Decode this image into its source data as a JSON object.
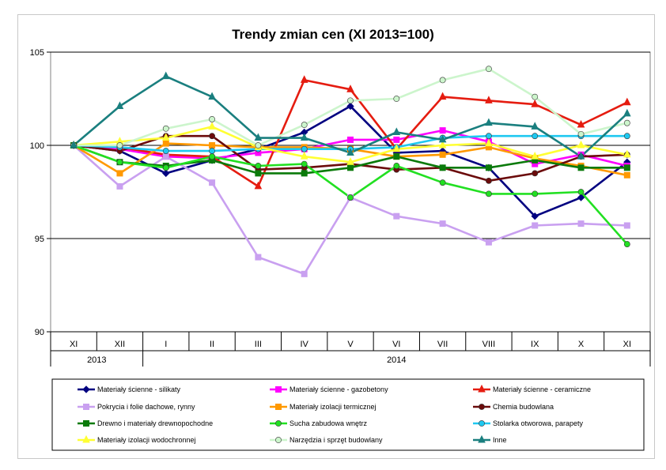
{
  "chart_data": {
    "type": "line",
    "title": "Trendy zmian cen (XI 2013=100)",
    "xlabel": "",
    "ylabel": "",
    "ylim": [
      90,
      105
    ],
    "yticks": [
      90,
      95,
      100,
      105
    ],
    "categories": [
      "XI",
      "XII",
      "I",
      "II",
      "III",
      "IV",
      "V",
      "VI",
      "VII",
      "VIII",
      "IX",
      "X",
      "XI"
    ],
    "year_groups": [
      {
        "label": "2013",
        "start": 0,
        "end": 1
      },
      {
        "label": "2014",
        "start": 2,
        "end": 12
      }
    ],
    "grid": "horizontal",
    "legend_position": "bottom",
    "series": [
      {
        "name": "Materiały ścienne - silikaty",
        "color": "#000080",
        "marker": "diamond",
        "values": [
          100,
          99.7,
          98.5,
          99.2,
          99.8,
          100.7,
          102.1,
          99.6,
          99.7,
          98.8,
          96.2,
          97.2,
          99.1
        ]
      },
      {
        "name": "Materiały ścienne - gazobetony",
        "color": "#ff00ff",
        "marker": "square",
        "values": [
          100,
          99.8,
          99.4,
          99.3,
          99.6,
          99.8,
          100.3,
          100.3,
          100.8,
          100.2,
          99.0,
          99.5,
          98.9
        ]
      },
      {
        "name": "Materiały ścienne - ceramiczne",
        "color": "#e51c10",
        "marker": "triangle",
        "values": [
          100,
          99.9,
          99.5,
          99.4,
          97.8,
          103.5,
          103.0,
          99.8,
          102.6,
          102.4,
          102.2,
          101.1,
          102.3
        ]
      },
      {
        "name": "Pokrycia i folie dachowe, rynny",
        "color": "#c9a0f0",
        "marker": "square",
        "values": [
          100,
          97.8,
          99.4,
          98.0,
          94.0,
          93.1,
          97.2,
          96.2,
          95.8,
          94.8,
          95.7,
          95.8,
          95.7
        ]
      },
      {
        "name": "Materiały izolacji termicznej",
        "color": "#ff9900",
        "marker": "square",
        "values": [
          100,
          98.5,
          100.1,
          100.0,
          99.9,
          99.9,
          99.8,
          99.4,
          99.5,
          99.9,
          99.3,
          98.9,
          98.4
        ]
      },
      {
        "name": "Chemia budowlana",
        "color": "#6b0b0b",
        "marker": "circle",
        "values": [
          100,
          99.7,
          100.5,
          100.5,
          98.7,
          98.8,
          99.0,
          98.7,
          98.8,
          98.1,
          98.5,
          99.4,
          99.5
        ]
      },
      {
        "name": "Drewno i materiały drewnopochodne",
        "color": "#0a7a0a",
        "marker": "square",
        "values": [
          100,
          99.1,
          98.9,
          99.2,
          98.5,
          98.5,
          98.8,
          99.4,
          98.8,
          98.8,
          99.2,
          98.8,
          98.8
        ]
      },
      {
        "name": "Sucha zabudowa wnętrz",
        "color": "#22e022",
        "marker": "circle",
        "values": [
          100,
          99.1,
          98.8,
          99.4,
          98.9,
          99.0,
          97.2,
          98.9,
          98.0,
          97.4,
          97.4,
          97.5,
          94.7
        ]
      },
      {
        "name": "Stolarka otworowa, parapety",
        "color": "#1ec8f0",
        "marker": "circle",
        "values": [
          100,
          99.9,
          99.7,
          99.7,
          99.8,
          99.8,
          99.8,
          99.9,
          100.4,
          100.5,
          100.5,
          100.5,
          100.5
        ]
      },
      {
        "name": "Materiały izolacji wodochronnej",
        "color": "#ffff33",
        "marker": "triangle",
        "values": [
          100,
          100.2,
          100.4,
          101.0,
          99.9,
          99.4,
          99.1,
          99.8,
          100.0,
          100.1,
          99.4,
          100.0,
          99.5
        ]
      },
      {
        "name": "Narzędzia i sprzęt budowlany",
        "color": "#ccf5cc",
        "marker": "circle",
        "values": [
          100,
          100.0,
          100.9,
          101.4,
          100.0,
          101.1,
          102.4,
          102.5,
          103.5,
          104.1,
          102.6,
          100.6,
          101.2
        ]
      },
      {
        "name": "Inne",
        "color": "#1a7f7f",
        "marker": "triangle",
        "values": [
          100,
          102.1,
          103.7,
          102.6,
          100.4,
          100.4,
          99.6,
          100.7,
          100.3,
          101.2,
          101.0,
          99.4,
          101.7
        ]
      }
    ]
  }
}
